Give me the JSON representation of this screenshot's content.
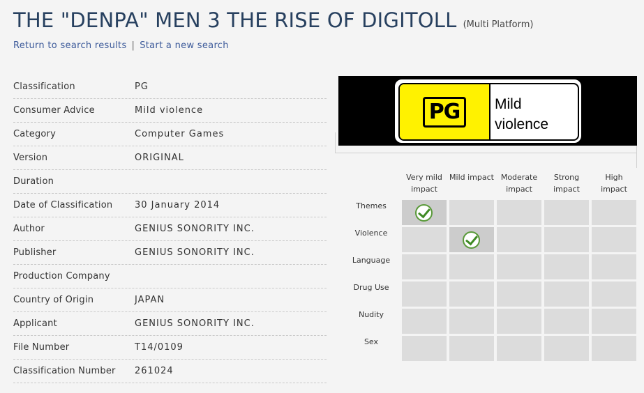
{
  "header": {
    "title": "THE \"DENPA\" MEN 3 THE RISE OF DIGITOLL",
    "platform": "(Multi Platform)"
  },
  "nav": {
    "return_label": "Return to search results",
    "separator": "|",
    "new_search_label": "Start a new search"
  },
  "details": [
    {
      "label": "Classification",
      "value": "PG"
    },
    {
      "label": "Consumer Advice",
      "value": "Mild violence"
    },
    {
      "label": "Category",
      "value": "Computer Games"
    },
    {
      "label": "Version",
      "value": "ORIGINAL"
    },
    {
      "label": "Duration",
      "value": ""
    },
    {
      "label": "Date of Classification",
      "value": "30 January 2014"
    },
    {
      "label": "Author",
      "value": "GENIUS SONORITY INC."
    },
    {
      "label": "Publisher",
      "value": "GENIUS SONORITY INC."
    },
    {
      "label": "Production Company",
      "value": ""
    },
    {
      "label": "Country of Origin",
      "value": "JAPAN"
    },
    {
      "label": "Applicant",
      "value": "GENIUS SONORITY INC."
    },
    {
      "label": "File Number",
      "value": "T14/0109"
    },
    {
      "label": "Classification Number",
      "value": "261024"
    }
  ],
  "rating_label": {
    "rating": "PG",
    "advice_line1": "Mild",
    "advice_line2": "violence",
    "colors": {
      "panel": "#fff200",
      "background": "#000000"
    }
  },
  "impact": {
    "levels": [
      {
        "line1": "Very mild",
        "line2": "impact"
      },
      {
        "line1": "Mild impact",
        "line2": ""
      },
      {
        "line1": "Moderate",
        "line2": "impact"
      },
      {
        "line1": "Strong",
        "line2": "impact"
      },
      {
        "line1": "High impact",
        "line2": ""
      }
    ],
    "elements": [
      {
        "name": "Themes",
        "level": 0
      },
      {
        "name": "Violence",
        "level": 1
      },
      {
        "name": "Language",
        "level": null
      },
      {
        "name": "Drug Use",
        "level": null
      },
      {
        "name": "Nudity",
        "level": null
      },
      {
        "name": "Sex",
        "level": null
      }
    ],
    "check_icon": "check-circle-icon"
  }
}
